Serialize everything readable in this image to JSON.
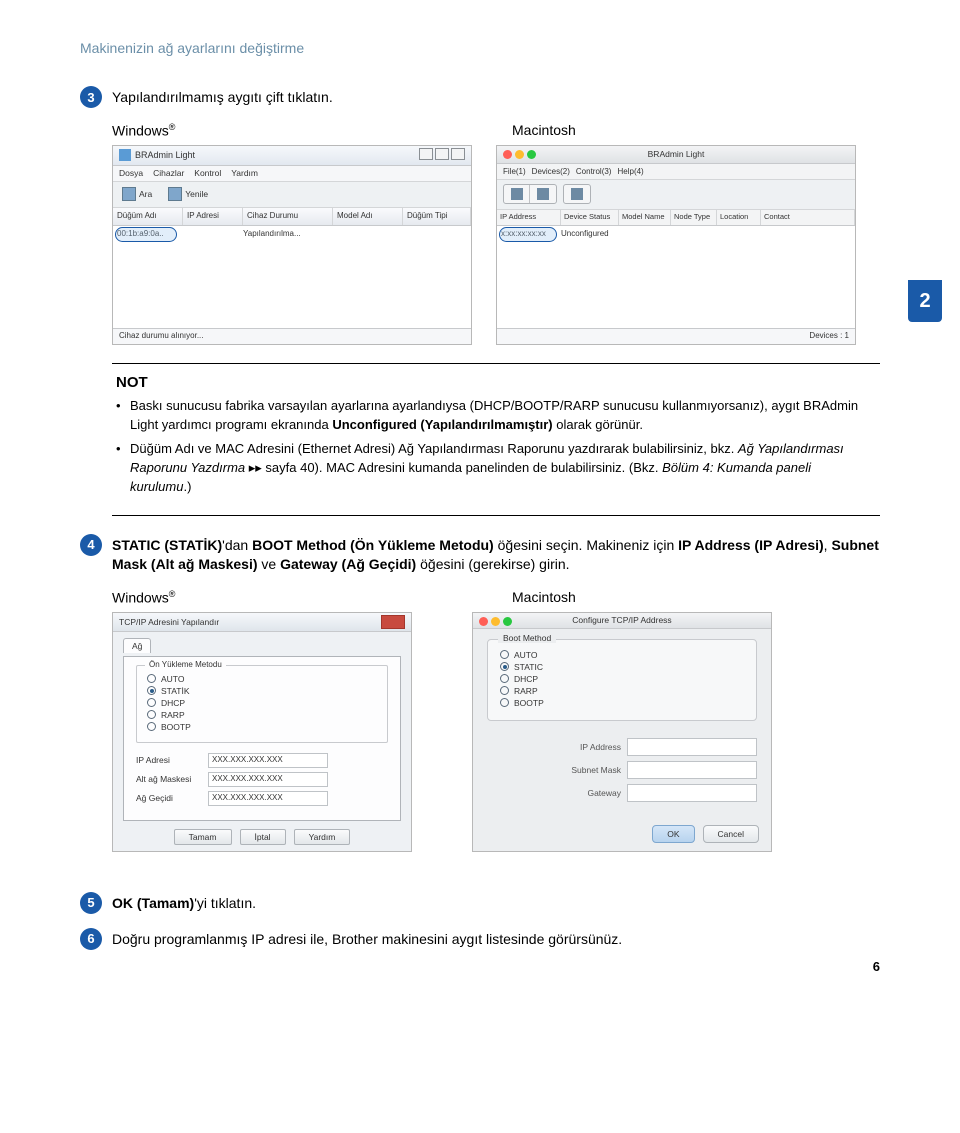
{
  "header": {
    "title": "Makinenizin ağ ayarlarını değiştirme"
  },
  "tab_badge": "2",
  "steps": {
    "s3": {
      "num": "3",
      "text": "Yapılandırılmamış aygıtı çift tıklatın."
    },
    "s4": {
      "num": "4",
      "part1": "STATIC (STATİK)",
      "part2": "'dan ",
      "part3": "BOOT Method (Ön Yükleme Metodu)",
      "part4": " öğesini seçin. Makineniz için ",
      "part5": "IP Address (IP Adresi)",
      "part6": ", ",
      "part7": "Subnet Mask (Alt ağ Maskesi)",
      "part8": " ve ",
      "part9": "Gateway (Ağ Geçidi)",
      "part10": " öğesini (gerekirse) girin."
    },
    "s5": {
      "num": "5",
      "text_a": "OK (Tamam)",
      "text_b": "'yi tıklatın."
    },
    "s6": {
      "num": "6",
      "text": "Doğru programlanmış IP adresi ile, Brother makinesini aygıt listesinde görürsünüz."
    }
  },
  "os": {
    "windows": "Windows",
    "mac": "Macintosh",
    "reg": "®"
  },
  "win_bra": {
    "title": "BRAdmin Light",
    "menu": [
      "Dosya",
      "Cihazlar",
      "Kontrol",
      "Yardım"
    ],
    "tool": [
      "Ara",
      "Yenile"
    ],
    "cols": [
      "Düğüm Adı",
      "IP Adresi",
      "Cihaz Durumu",
      "Model Adı",
      "Düğüm Tipi"
    ],
    "row": {
      "name": "00:1b:a9:0a..",
      "ip": "",
      "status": "Yapılandırılma..."
    },
    "status": "Cihaz durumu alınıyor..."
  },
  "mac_bra": {
    "title": "BRAdmin Light",
    "menu": [
      "File(1)",
      "Devices(2)",
      "Control(3)",
      "Help(4)"
    ],
    "cols": [
      "IP Address",
      "Device Status",
      "Model Name",
      "Node Type",
      "Location",
      "Contact"
    ],
    "row": {
      "name": "x:xx:xx:xx:xx",
      "status": "Unconfigured"
    },
    "status": "Devices : 1",
    "dot_colors": [
      "#ff5f57",
      "#febc2e",
      "#28c840"
    ]
  },
  "not_box": {
    "title": "NOT",
    "b1_a": "Baskı sunucusu fabrika varsayılan ayarlarına ayarlandıysa (DHCP/BOOTP/RARP sunucusu kullanmıyorsanız), aygıt BRAdmin Light yardımcı programı ekranında ",
    "b1_b": "Unconfigured (Yapılandırılmamıştır)",
    "b1_c": " olarak görünür.",
    "b2_a": "Düğüm Adı ve MAC Adresini (Ethernet Adresi) Ağ Yapılandırması Raporunu yazdırarak bulabilirsiniz, bkz. ",
    "b2_b": "Ağ Yapılandırması Raporunu Yazdırma",
    "b2_c": " ▸▸ sayfa 40). MAC Adresini kumanda panelinden de bulabilirsiniz. (Bkz. ",
    "b2_d": "Bölüm 4: Kumanda paneli kurulumu",
    "b2_e": ".)"
  },
  "win_tcp": {
    "title": "TCP/IP Adresini Yapılandır",
    "tab": "Ağ",
    "group": "Ön Yükleme Metodu",
    "radios": [
      "AUTO",
      "STATİK",
      "DHCP",
      "RARP",
      "BOOTP"
    ],
    "selected": 1,
    "fields": [
      {
        "label": "IP Adresi",
        "value": "XXX.XXX.XXX.XXX"
      },
      {
        "label": "Alt ağ Maskesi",
        "value": "XXX.XXX.XXX.XXX"
      },
      {
        "label": "Ağ Geçidi",
        "value": "XXX.XXX.XXX.XXX"
      }
    ],
    "buttons": [
      "Tamam",
      "İptal",
      "Yardım"
    ]
  },
  "mac_tcp": {
    "title": "Configure TCP/IP Address",
    "group": "Boot Method",
    "radios": [
      "AUTO",
      "STATIC",
      "DHCP",
      "RARP",
      "BOOTP"
    ],
    "selected": 1,
    "fields": [
      {
        "label": "IP Address",
        "value": ""
      },
      {
        "label": "Subnet Mask",
        "value": ""
      },
      {
        "label": "Gateway",
        "value": ""
      }
    ],
    "buttons": {
      "ok": "OK",
      "cancel": "Cancel"
    },
    "dot_colors": [
      "#ff5f57",
      "#febc2e",
      "#28c840"
    ]
  },
  "page_num": "6"
}
